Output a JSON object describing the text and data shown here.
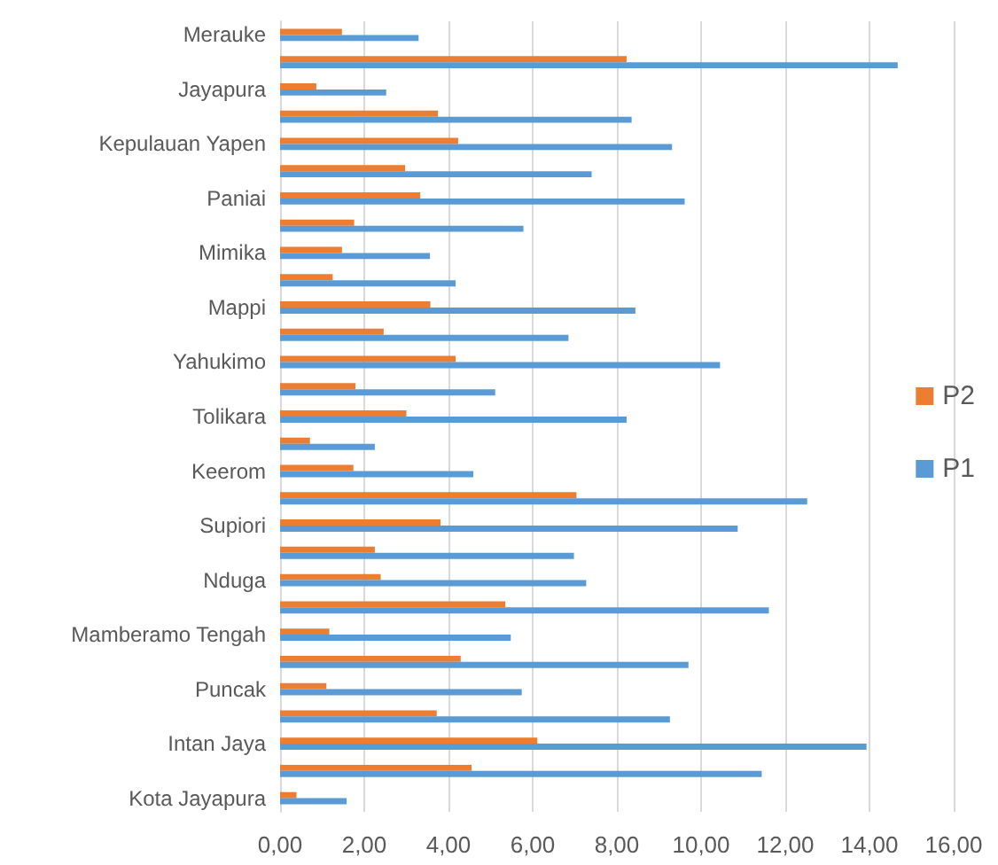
{
  "chart_data": {
    "type": "bar",
    "orientation": "horizontal",
    "categories": [
      "Merauke",
      null,
      "Jayapura",
      null,
      "Kepulauan Yapen",
      null,
      "Paniai",
      null,
      "Mimika",
      null,
      "Mappi",
      null,
      "Yahukimo",
      null,
      "Tolikara",
      null,
      "Keerom",
      null,
      "Supiori",
      null,
      "Nduga",
      null,
      "Mamberamo Tengah",
      null,
      "Puncak",
      null,
      "Intan Jaya",
      null,
      "Kota Jayapura"
    ],
    "series": [
      {
        "name": "P2",
        "color": "#ed7d31",
        "values": [
          1.47,
          8.23,
          0.86,
          3.75,
          4.23,
          2.97,
          3.33,
          1.76,
          1.47,
          1.25,
          3.57,
          2.46,
          4.17,
          1.79,
          3.0,
          0.71,
          1.74,
          7.04,
          3.81,
          2.25,
          2.39,
          5.35,
          1.17,
          4.29,
          1.1,
          3.72,
          6.11,
          4.55,
          0.39
        ]
      },
      {
        "name": "P1",
        "color": "#5b9bd5",
        "values": [
          3.29,
          14.67,
          2.52,
          8.35,
          9.31,
          7.4,
          9.61,
          5.78,
          3.56,
          4.17,
          8.44,
          6.85,
          10.45,
          5.11,
          8.23,
          2.25,
          4.59,
          12.52,
          10.87,
          6.98,
          7.27,
          11.61,
          5.48,
          9.7,
          5.74,
          9.26,
          13.93,
          11.44,
          1.58
        ]
      }
    ],
    "xlim": [
      0,
      16
    ],
    "xticks": [
      {
        "value": 0,
        "label": "0,00"
      },
      {
        "value": 2,
        "label": "2,00"
      },
      {
        "value": 4,
        "label": "4,00"
      },
      {
        "value": 6,
        "label": "6,00"
      },
      {
        "value": 8,
        "label": "8,00"
      },
      {
        "value": 10,
        "label": "10,00"
      },
      {
        "value": 12,
        "label": "12,00"
      },
      {
        "value": 14,
        "label": "14,00"
      },
      {
        "value": 16,
        "label": "16,00"
      }
    ],
    "grid": "x",
    "legend": "right"
  }
}
